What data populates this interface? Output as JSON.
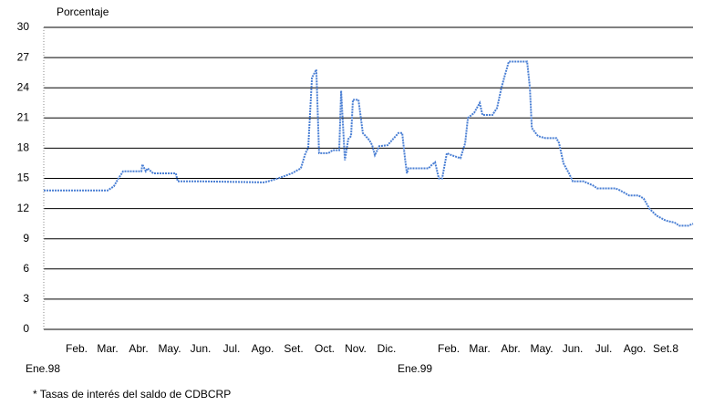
{
  "chart_data": {
    "type": "line",
    "ylabel": "Porcentaje",
    "footnote": "* Tasas de interés del saldo de CDBCRP",
    "color": "#4a7fd4",
    "grid": true,
    "xlim": [
      0,
      20.94
    ],
    "ylim": [
      0,
      30
    ],
    "yticks": [
      0,
      3,
      6,
      9,
      12,
      15,
      18,
      21,
      24,
      27,
      30
    ],
    "xticks": [
      {
        "value": 0,
        "label": "Ene.98"
      },
      {
        "value": 1,
        "label": "Feb."
      },
      {
        "value": 2,
        "label": "Mar."
      },
      {
        "value": 3,
        "label": "Abr."
      },
      {
        "value": 4,
        "label": "May."
      },
      {
        "value": 5,
        "label": "Jun."
      },
      {
        "value": 6,
        "label": "Jul."
      },
      {
        "value": 7,
        "label": "Ago."
      },
      {
        "value": 8,
        "label": "Set."
      },
      {
        "value": 9,
        "label": "Oct."
      },
      {
        "value": 10,
        "label": "Nov."
      },
      {
        "value": 11,
        "label": "Dic."
      },
      {
        "value": 12,
        "label": "Ene.99"
      },
      {
        "value": 13,
        "label": "Feb."
      },
      {
        "value": 14,
        "label": "Mar."
      },
      {
        "value": 15,
        "label": "Abr."
      },
      {
        "value": 16,
        "label": "May."
      },
      {
        "value": 17,
        "label": "Jun."
      },
      {
        "value": 18,
        "label": "Jul."
      },
      {
        "value": 19,
        "label": "Ago."
      },
      {
        "value": 20,
        "label": "Set.8"
      }
    ],
    "x": [
      0,
      2.06,
      2.26,
      2.41,
      2.56,
      3.15,
      3.18,
      3.29,
      3.35,
      3.53,
      4.26,
      4.32,
      5.12,
      7.12,
      7.56,
      8,
      8.29,
      8.44,
      8.53,
      8.65,
      8.79,
      8.88,
      9.18,
      9.32,
      9.53,
      9.59,
      9.71,
      9.82,
      9.91,
      9.97,
      10.15,
      10.29,
      10.5,
      10.59,
      10.68,
      10.82,
      11.09,
      11.29,
      11.44,
      11.56,
      11.65,
      11.71,
      11.76,
      12.41,
      12.5,
      12.62,
      12.74,
      12.85,
      13,
      13.15,
      13.44,
      13.59,
      13.68,
      13.88,
      13.97,
      14.06,
      14.15,
      14.47,
      14.62,
      14.76,
      14.85,
      15,
      15.59,
      15.68,
      15.74,
      15.94,
      16.18,
      16.53,
      16.62,
      16.76,
      16.94,
      17.06,
      17.41,
      17.71,
      17.85,
      18.44,
      18.59,
      18.88,
      19.18,
      19.35,
      19.53,
      19.76,
      20.06,
      20.35,
      20.5,
      20.79,
      20.94
    ],
    "values": [
      13.8,
      13.8,
      14.2,
      15,
      15.7,
      15.7,
      16.4,
      15.7,
      16,
      15.5,
      15.5,
      14.7,
      14.7,
      14.6,
      15,
      15.5,
      16,
      17.5,
      18,
      25,
      25.8,
      17.5,
      17.5,
      17.8,
      17.8,
      23.7,
      16.8,
      18.9,
      19.2,
      22.8,
      22.8,
      19.5,
      18.8,
      18.3,
      17.3,
      18.2,
      18.3,
      19,
      19.5,
      19.5,
      17,
      15.5,
      16,
      16,
      16.3,
      16.6,
      15,
      15,
      17.5,
      17.3,
      17,
      18.5,
      21,
      21.5,
      22,
      22.5,
      21.3,
      21.3,
      22,
      24,
      25,
      26.6,
      26.6,
      24,
      20,
      19.2,
      19,
      19,
      18.5,
      16.5,
      15.5,
      14.7,
      14.7,
      14.3,
      14,
      14,
      13.8,
      13.3,
      13.3,
      13,
      12,
      11.3,
      10.8,
      10.6,
      10.3,
      10.3,
      10.5
    ]
  }
}
